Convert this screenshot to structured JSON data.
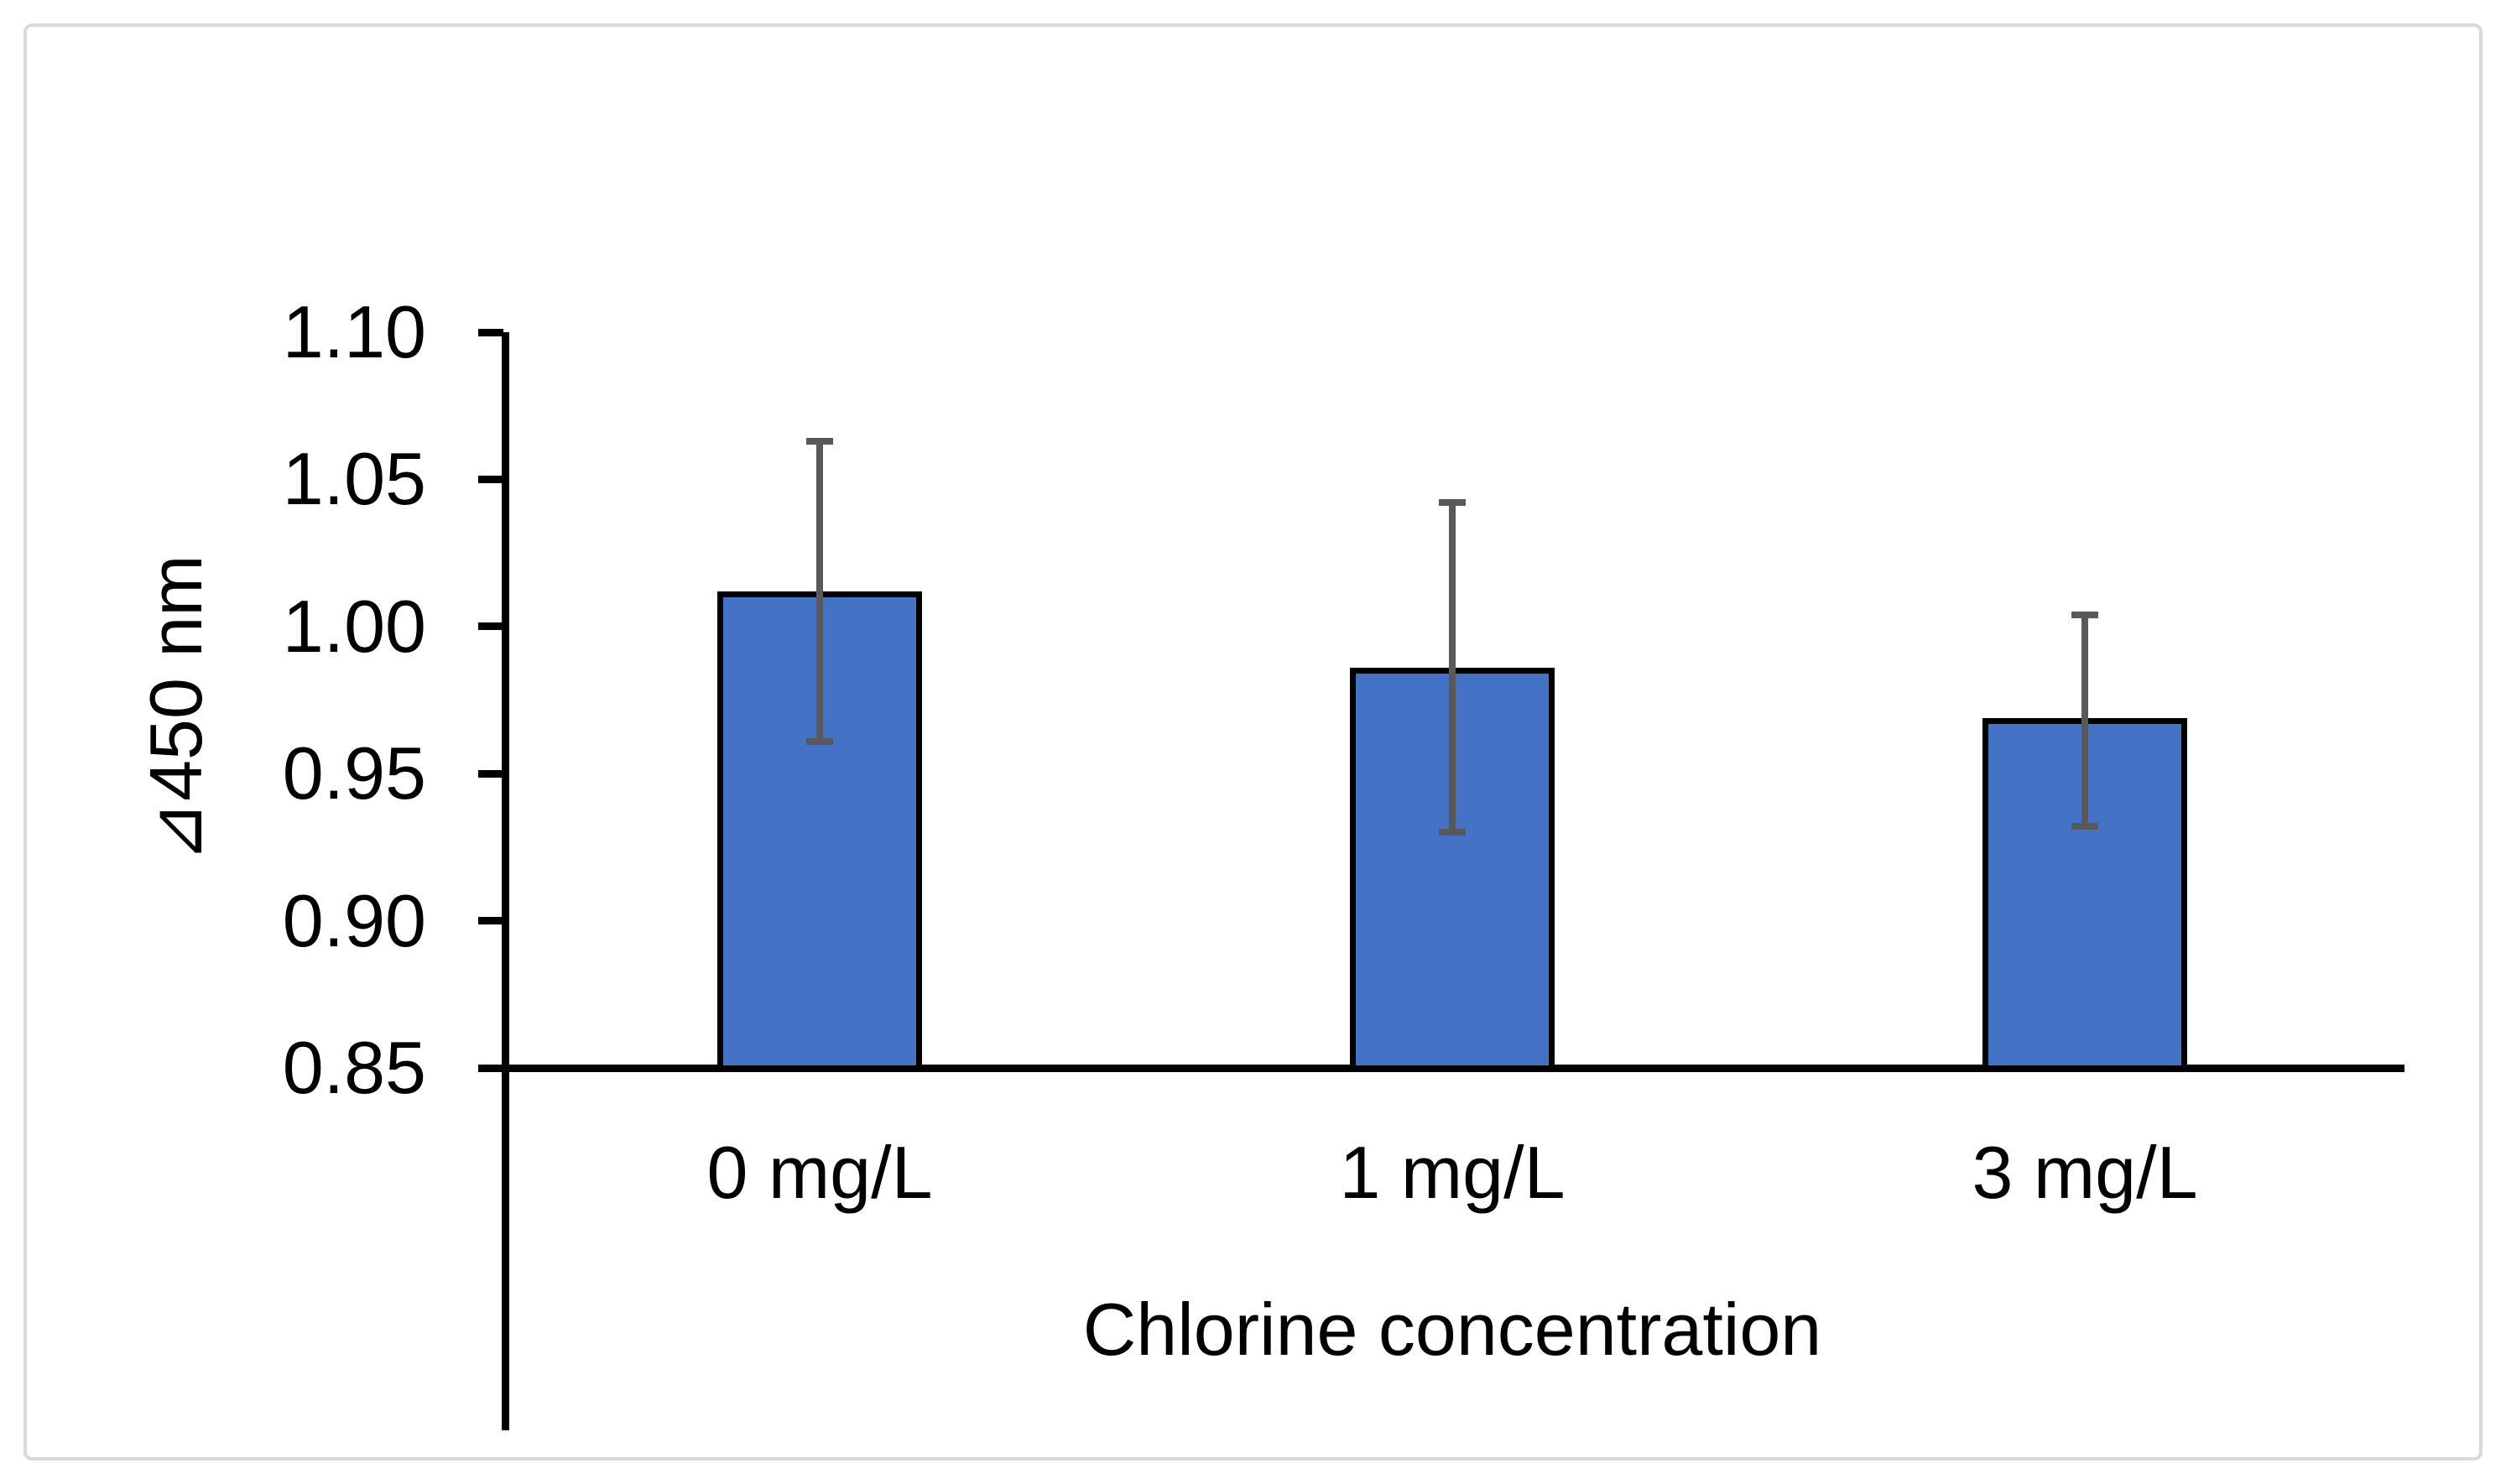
{
  "chart_data": {
    "type": "bar",
    "title": "",
    "categories": [
      "0 mg/L",
      "1 mg/L",
      "3 mg/L"
    ],
    "values": [
      1.012,
      0.986,
      0.969
    ],
    "error_bars": {
      "plus": [
        0.051,
        0.056,
        0.035
      ],
      "minus": [
        0.051,
        0.056,
        0.037
      ],
      "upper_values": [
        1.063,
        1.042,
        1.004
      ],
      "lower_values": [
        0.961,
        0.93,
        0.932
      ]
    },
    "xlabel": "Chlorine concentration",
    "ylabel": "⊿450 nm",
    "ylim": [
      0.85,
      1.1
    ],
    "ytick_step": 0.05,
    "yticks": [
      "1.10",
      "1.05",
      "1.00",
      "0.95",
      "0.90",
      "0.85"
    ],
    "grid": false,
    "legend": "none",
    "colors": {
      "bar_fill": "#4472C4",
      "bar_border": "#000000",
      "error_bar": "#595959",
      "axis": "#000000",
      "frame_border": "#D9D9D9",
      "background": "#FFFFFF",
      "text": "#000000"
    }
  }
}
